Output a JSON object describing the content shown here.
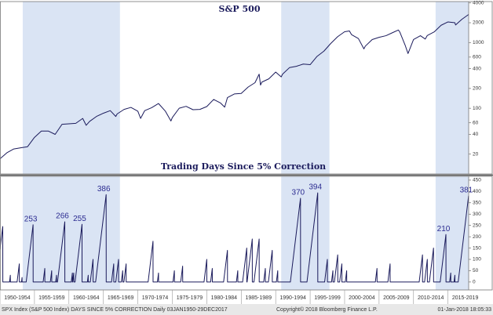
{
  "chart_data": [
    {
      "type": "line",
      "title": "S&P 500",
      "log_scale": true,
      "color": "#1b1b5c",
      "x": [
        1950,
        1951,
        1952,
        1953,
        1954,
        1955,
        1956,
        1957,
        1958,
        1959,
        1960,
        1961,
        1962,
        1962.5,
        1963,
        1964,
        1965,
        1966,
        1966.8,
        1967,
        1968,
        1969,
        1970,
        1970.4,
        1971,
        1972,
        1973,
        1974,
        1974.8,
        1975,
        1976,
        1977,
        1978,
        1979,
        1980,
        1981,
        1982,
        1982.6,
        1983,
        1984,
        1985,
        1986,
        1987,
        1987.6,
        1987.8,
        1988,
        1989,
        1990,
        1990.8,
        1991,
        1992,
        1993,
        1994,
        1995,
        1996,
        1997,
        1998,
        1999,
        2000,
        2000.7,
        2001,
        2002,
        2002.8,
        2003,
        2004,
        2005,
        2006,
        2007,
        2007.8,
        2008,
        2008.8,
        2009.2,
        2010,
        2011,
        2011.7,
        2012,
        2013,
        2014,
        2015,
        2016,
        2016.1,
        2017,
        2017.99
      ],
      "values": [
        17,
        21,
        24,
        25,
        26,
        36,
        45,
        45,
        40,
        57,
        58,
        59,
        70,
        55,
        63,
        75,
        84,
        92,
        75,
        82,
        96,
        103,
        90,
        70,
        92,
        102,
        118,
        90,
        64,
        72,
        100,
        107,
        95,
        96,
        106,
        136,
        120,
        104,
        145,
        165,
        168,
        210,
        245,
        330,
        225,
        250,
        280,
        355,
        300,
        330,
        415,
        435,
        470,
        460,
        615,
        740,
        970,
        1230,
        1460,
        1500,
        1320,
        1150,
        800,
        880,
        1110,
        1200,
        1270,
        1420,
        1550,
        1450,
        900,
        680,
        1110,
        1270,
        1130,
        1280,
        1450,
        1830,
        2060,
        2000,
        1850,
        2250,
        2670
      ],
      "ylim": [
        10,
        4200
      ],
      "yticks": [
        20,
        40,
        60,
        100,
        200,
        400,
        600,
        1000,
        2000,
        4000
      ]
    },
    {
      "type": "line",
      "title": "Trading Days Since 5% Correction",
      "log_scale": false,
      "color": "#1b1b5c",
      "x": [
        1950,
        1950.4,
        1950.41,
        1951.38,
        1951.5,
        1951.51,
        1952.48,
        1952.8,
        1952.81,
        1953.12,
        1953.2,
        1953.21,
        1953.8,
        1954.8,
        1954.81,
        1956.26,
        1956.5,
        1956.51,
        1957.3,
        1957.5,
        1957.51,
        1958.08,
        1958.2,
        1958.21,
        1958.34,
        1959.4,
        1959.41,
        1960.34,
        1960.5,
        1960.51,
        1960.54,
        1960.7,
        1960.71,
        1960.89,
        1961.9,
        1961.91,
        1962.68,
        1962.8,
        1962.81,
        1963.1,
        1963.5,
        1963.51,
        1963.87,
        1965.4,
        1965.41,
        1966.18,
        1966.5,
        1966.51,
        1966.8,
        1967.2,
        1967.21,
        1967.6,
        1967.8,
        1967.81,
        1967.98,
        1968.3,
        1968.31,
        1971.49,
        1972.2,
        1972.21,
        1972.84,
        1973,
        1973.01,
        1975.1,
        1975.3,
        1975.31,
        1976.22,
        1976.5,
        1976.51,
        1979.6,
        1980,
        1980.01,
        1980.56,
        1980.8,
        1980.81,
        1982.44,
        1983,
        1983.01,
        1984.3,
        1984.5,
        1984.51,
        1985.2,
        1985.8,
        1985.81,
        1985.85,
        1986.6,
        1986.61,
        1986.85,
        1987.6,
        1987.61,
        1988.26,
        1988.5,
        1988.51,
        1988.94,
        1989.5,
        1989.51,
        1990.1,
        1990.3,
        1990.31,
        1992.13,
        1993.6,
        1993.61,
        1994.54,
        1996.1,
        1996.11,
        1997.1,
        1997.5,
        1997.51,
        1998.1,
        1998.3,
        1998.31,
        1998.52,
        1999,
        1999.01,
        1999.28,
        1999.6,
        1999.61,
        2000.1,
        2000.3,
        2000.31,
        2004.46,
        2004.7,
        2004.71,
        2006.28,
        2006.6,
        2006.61,
        2010.82,
        2011.3,
        2011.31,
        2011.6,
        2012,
        2012.01,
        2012.3,
        2012.9,
        2012.91,
        2013.87,
        2014.7,
        2014.71,
        2015.24,
        2015.4,
        2015.41,
        2015.88,
        2016,
        2016.01,
        2016.48,
        2017.99
      ],
      "values": [
        144,
        245,
        0,
        0,
        30,
        0,
        0,
        80,
        0,
        0,
        20,
        0,
        0,
        253,
        0,
        0,
        60,
        0,
        0,
        50,
        0,
        0,
        30,
        0,
        0,
        266,
        0,
        0,
        40,
        0,
        0,
        40,
        0,
        0,
        255,
        0,
        0,
        30,
        0,
        0,
        100,
        0,
        0,
        386,
        0,
        0,
        80,
        0,
        0,
        100,
        0,
        0,
        50,
        0,
        0,
        80,
        0,
        0,
        180,
        0,
        0,
        40,
        0,
        0,
        50,
        0,
        0,
        70,
        0,
        0,
        100,
        0,
        0,
        60,
        0,
        0,
        140,
        0,
        0,
        50,
        0,
        0,
        150,
        0,
        0,
        190,
        0,
        0,
        190,
        0,
        0,
        60,
        0,
        0,
        140,
        0,
        0,
        50,
        0,
        0,
        370,
        0,
        0,
        394,
        0,
        0,
        100,
        0,
        0,
        50,
        0,
        0,
        120,
        0,
        0,
        80,
        0,
        0,
        50,
        0,
        0,
        60,
        0,
        0,
        80,
        0,
        0,
        120,
        0,
        0,
        100,
        0,
        0,
        150,
        0,
        0,
        210,
        0,
        0,
        40,
        0,
        0,
        30,
        0,
        0,
        381
      ],
      "ylim": [
        -35,
        467
      ],
      "yticks": [
        0,
        50,
        100,
        150,
        200,
        250,
        300,
        350,
        400,
        450
      ],
      "peak_labels": [
        {
          "x": 1954.8,
          "value": 253
        },
        {
          "x": 1959.4,
          "value": 266
        },
        {
          "x": 1961.9,
          "value": 255
        },
        {
          "x": 1965.4,
          "value": 386
        },
        {
          "x": 1993.6,
          "value": 370
        },
        {
          "x": 1996.1,
          "value": 394
        },
        {
          "x": 2014.7,
          "value": 210
        },
        {
          "x": 2017.99,
          "value": 381
        }
      ]
    }
  ],
  "x_axis": {
    "xlim": [
      1950,
      2018
    ],
    "xticks": [
      {
        "value": 1950,
        "label": "1950-1954"
      },
      {
        "value": 1955,
        "label": "1955-1959"
      },
      {
        "value": 1960,
        "label": "1960-1964"
      },
      {
        "value": 1965,
        "label": "1965-1969"
      },
      {
        "value": 1970,
        "label": "1970-1974"
      },
      {
        "value": 1975,
        "label": "1975-1979"
      },
      {
        "value": 1980,
        "label": "1980-1984"
      },
      {
        "value": 1985,
        "label": "1985-1989"
      },
      {
        "value": 1990,
        "label": "1990-1994"
      },
      {
        "value": 1995,
        "label": "1995-1999"
      },
      {
        "value": 2000,
        "label": "2000-2004"
      },
      {
        "value": 2005,
        "label": "2005-2009"
      },
      {
        "value": 2010,
        "label": "2010-2014"
      },
      {
        "value": 2015,
        "label": "2015-2019"
      }
    ]
  },
  "shaded_periods": [
    [
      1953.3,
      1967.4
    ],
    [
      1990.8,
      1997.8
    ],
    [
      2013.2,
      2018
    ]
  ],
  "footer": {
    "left": "SPX Index (S&P 500 Index) DAYS SINCE 5% CORRECTION  Daily 03JAN1950-29DEC2017",
    "center": "Copyright© 2018 Bloomberg Finance L.P.",
    "right": "01-Jan-2018 18:05:33"
  }
}
